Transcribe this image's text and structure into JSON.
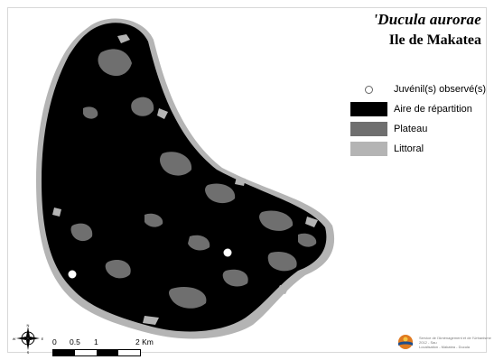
{
  "map": {
    "title_species": "'Ducula aurorae",
    "title_island": "Ile de Makatea",
    "legend": [
      {
        "label": "Juvénil(s) observé(s)",
        "kind": "point",
        "color": "#ffffff"
      },
      {
        "label": "Aire de répartition",
        "kind": "fill",
        "color": "#000000"
      },
      {
        "label": "Plateau",
        "kind": "fill",
        "color": "#6f6f6f"
      },
      {
        "label": "Littoral",
        "kind": "fill",
        "color": "#b4b4b4"
      }
    ],
    "scale_bar": {
      "tick_labels": [
        "0",
        "0.5",
        "1",
        "2 Km"
      ]
    },
    "north_arrow": {
      "letters": [
        "N",
        "S",
        "E",
        "W"
      ]
    },
    "credits": {
      "logo_icon": "institution-logo-icon",
      "lines": [
        "Service de l'Aménagement et de l'Urbanisme",
        "2012 - Sau",
        "Localisation - Makatea - Ducula"
      ]
    },
    "colors": {
      "range": "#000000",
      "plateau": "#6f6f6f",
      "littoral": "#b4b4b4",
      "sighting": "#ffffff"
    }
  }
}
